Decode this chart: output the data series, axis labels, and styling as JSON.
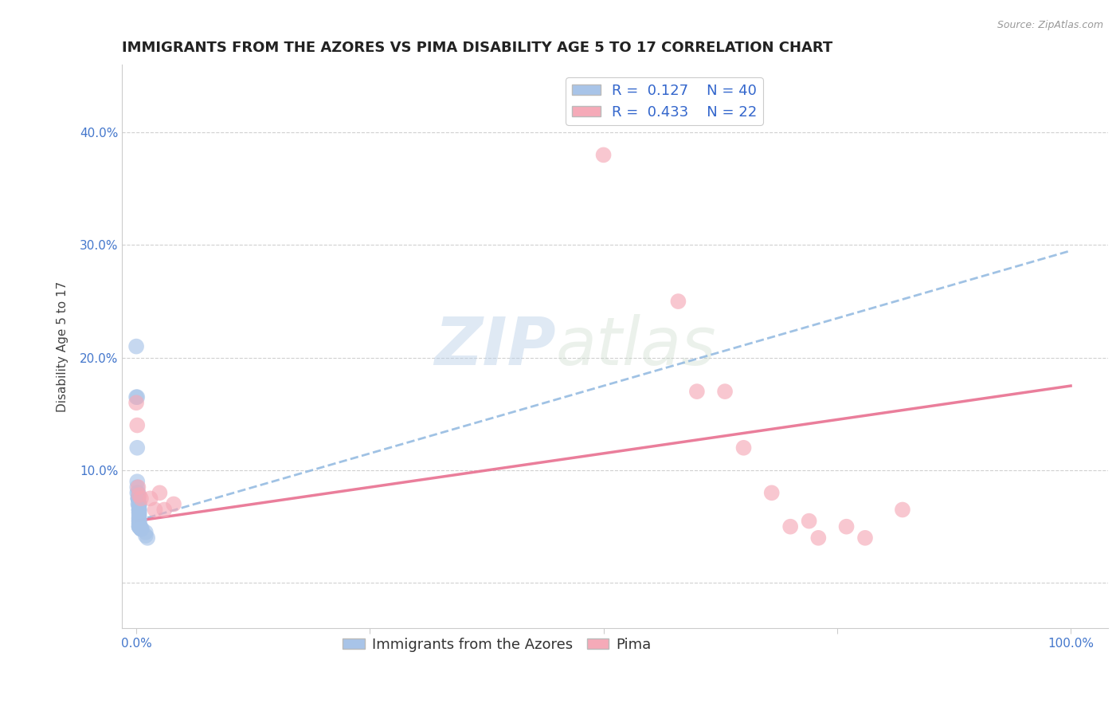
{
  "title": "IMMIGRANTS FROM THE AZORES VS PIMA DISABILITY AGE 5 TO 17 CORRELATION CHART",
  "source": "Source: ZipAtlas.com",
  "xlabel": "",
  "ylabel": "Disability Age 5 to 17",
  "xlim": [
    -0.015,
    1.04
  ],
  "ylim": [
    -0.04,
    0.46
  ],
  "xticks": [
    0.0,
    0.25,
    0.5,
    0.75,
    1.0
  ],
  "xticklabels": [
    "0.0%",
    "",
    "",
    "",
    "100.0%"
  ],
  "yticks": [
    0.0,
    0.1,
    0.2,
    0.3,
    0.4
  ],
  "yticklabels": [
    "",
    "10.0%",
    "20.0%",
    "30.0%",
    "40.0%"
  ],
  "blue_R": 0.127,
  "blue_N": 40,
  "pink_R": 0.433,
  "pink_N": 22,
  "blue_color": "#a8c4e8",
  "blue_line_color": "#90b8e0",
  "pink_color": "#f5aab8",
  "pink_line_color": "#e87090",
  "blue_label": "Immigrants from the Azores",
  "pink_label": "Pima",
  "watermark_zip": "ZIP",
  "watermark_atlas": "atlas",
  "blue_x": [
    0.0,
    0.0,
    0.001,
    0.001,
    0.001,
    0.001,
    0.001,
    0.002,
    0.002,
    0.002,
    0.002,
    0.002,
    0.003,
    0.003,
    0.003,
    0.003,
    0.003,
    0.003,
    0.003,
    0.003,
    0.003,
    0.003,
    0.003,
    0.003,
    0.003,
    0.003,
    0.003,
    0.003,
    0.003,
    0.003,
    0.004,
    0.004,
    0.004,
    0.005,
    0.005,
    0.005,
    0.006,
    0.01,
    0.01,
    0.012
  ],
  "blue_y": [
    0.21,
    0.165,
    0.165,
    0.12,
    0.09,
    0.085,
    0.08,
    0.08,
    0.075,
    0.075,
    0.075,
    0.07,
    0.07,
    0.07,
    0.068,
    0.065,
    0.065,
    0.065,
    0.063,
    0.062,
    0.06,
    0.058,
    0.057,
    0.055,
    0.055,
    0.053,
    0.052,
    0.05,
    0.05,
    0.05,
    0.05,
    0.05,
    0.05,
    0.048,
    0.048,
    0.048,
    0.048,
    0.045,
    0.042,
    0.04
  ],
  "pink_x": [
    0.0,
    0.001,
    0.002,
    0.003,
    0.005,
    0.015,
    0.02,
    0.025,
    0.03,
    0.04,
    0.5,
    0.58,
    0.6,
    0.63,
    0.65,
    0.68,
    0.7,
    0.72,
    0.73,
    0.76,
    0.78,
    0.82
  ],
  "pink_y": [
    0.16,
    0.14,
    0.085,
    0.078,
    0.075,
    0.075,
    0.065,
    0.08,
    0.065,
    0.07,
    0.38,
    0.25,
    0.17,
    0.17,
    0.12,
    0.08,
    0.05,
    0.055,
    0.04,
    0.05,
    0.04,
    0.065
  ],
  "blue_trendline_x": [
    0.0,
    1.0
  ],
  "blue_trendline_y_start": 0.055,
  "blue_trendline_y_end": 0.295,
  "pink_trendline_x": [
    0.0,
    1.0
  ],
  "pink_trendline_y_start": 0.055,
  "pink_trendline_y_end": 0.175,
  "grid_color": "#d0d0d0",
  "background_color": "#ffffff",
  "title_fontsize": 13,
  "axis_label_fontsize": 11,
  "tick_fontsize": 11,
  "tick_color": "#4477cc",
  "legend_fontsize": 13
}
